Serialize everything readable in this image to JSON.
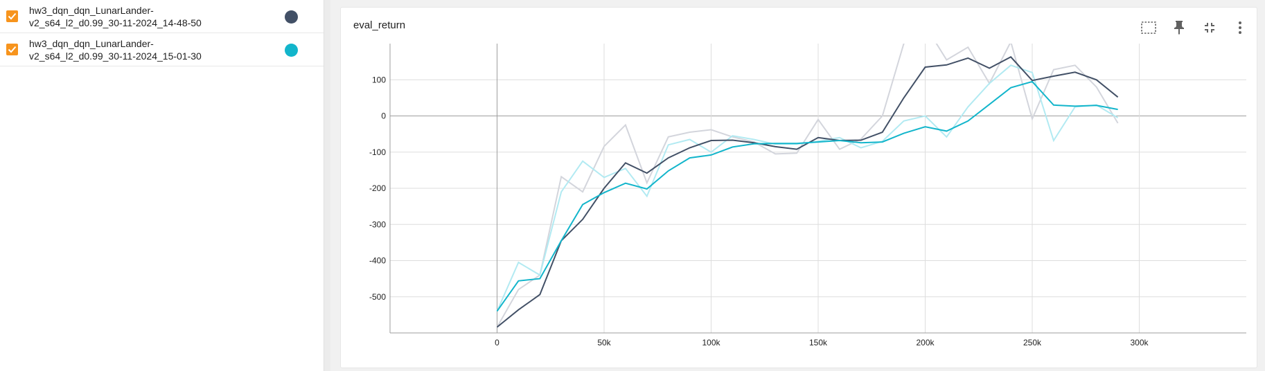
{
  "runs": [
    {
      "label": "hw3_dqn_dqn_LunarLander-\nv2_s64_l2_d0.99_30-11-2024_14-48-50",
      "color": "#425066",
      "checked": true
    },
    {
      "label": "hw3_dqn_dqn_LunarLander-\nv2_s64_l2_d0.99_30-11-2024_15-01-30",
      "color": "#12b5cb",
      "checked": true
    }
  ],
  "card": {
    "title": "eval_return",
    "toolbar": [
      "fit-domain-icon",
      "pin-icon",
      "collapse-icon",
      "more-vert-icon"
    ]
  },
  "chart_data": {
    "type": "line",
    "title": "eval_return",
    "xlabel": "",
    "ylabel": "",
    "xlim": [
      -50000,
      350000
    ],
    "ylim": [
      -600,
      200
    ],
    "x_ticks": [
      0,
      50000,
      100000,
      150000,
      200000,
      250000,
      300000
    ],
    "x_tick_labels": [
      "0",
      "50k",
      "100k",
      "150k",
      "200k",
      "250k",
      "300k"
    ],
    "y_ticks": [
      -500,
      -400,
      -300,
      -200,
      -100,
      0,
      100
    ],
    "y_tick_labels": [
      "-500",
      "-400",
      "-300",
      "-200",
      "-100",
      "0",
      "100"
    ],
    "grid": true,
    "legend": "none",
    "x": [
      0,
      10000,
      20000,
      30000,
      40000,
      50000,
      60000,
      70000,
      80000,
      90000,
      100000,
      110000,
      120000,
      130000,
      140000,
      150000,
      160000,
      170000,
      180000,
      190000,
      200000,
      210000,
      220000,
      230000,
      240000,
      250000,
      260000,
      270000,
      280000,
      290000
    ],
    "series": [
      {
        "color": "#425066",
        "raw_color": "#d3d5dc",
        "values": [
          -584,
          -480,
          -440,
          -168,
          -210,
          -84,
          -25,
          -185,
          -58,
          -45,
          -38,
          -58,
          -72,
          -105,
          -103,
          -10,
          -92,
          -64,
          0,
          200,
          250,
          155,
          190,
          90,
          205,
          -8,
          128,
          140,
          80,
          -20
        ],
        "smoothed": [
          -584,
          -536,
          -494,
          -345,
          -286,
          -200,
          -130,
          -158,
          -116,
          -88,
          -68,
          -67,
          -74,
          -85,
          -92,
          -60,
          -68,
          -67,
          -45,
          50,
          135,
          141,
          160,
          132,
          163,
          98,
          110,
          121,
          100,
          52
        ]
      },
      {
        "color": "#12b5cb",
        "raw_color": "#b2eaf2",
        "values": [
          -540,
          -405,
          -440,
          -210,
          -125,
          -170,
          -145,
          -222,
          -80,
          -65,
          -100,
          -55,
          -65,
          -78,
          -78,
          -70,
          -60,
          -88,
          -70,
          -14,
          0,
          -58,
          25,
          90,
          140,
          120,
          -68,
          25,
          30,
          -5
        ],
        "smoothed": [
          -540,
          -456,
          -450,
          -345,
          -245,
          -212,
          -186,
          -202,
          -152,
          -116,
          -108,
          -86,
          -77,
          -76,
          -76,
          -72,
          -68,
          -74,
          -72,
          -48,
          -30,
          -42,
          -14,
          32,
          78,
          95,
          30,
          27,
          29,
          18
        ]
      }
    ]
  }
}
